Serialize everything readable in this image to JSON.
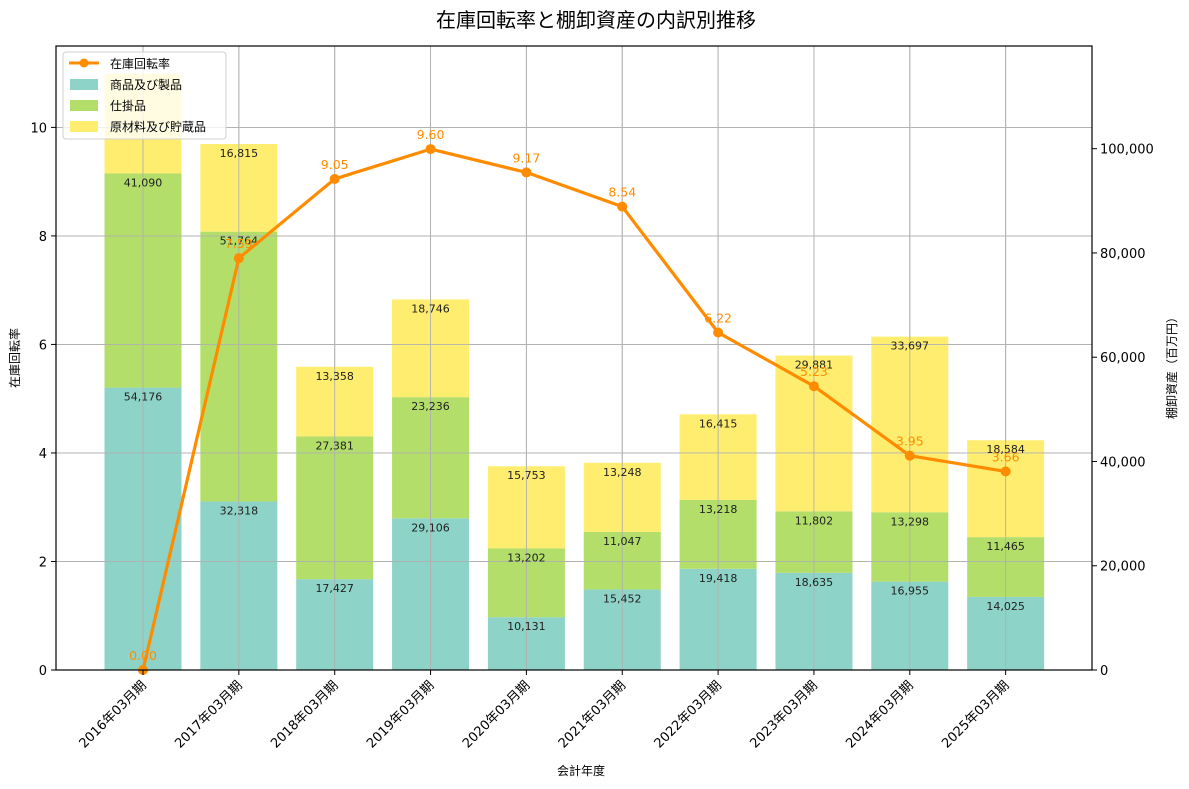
{
  "chart_data": {
    "type": "bar",
    "subtype": "stacked-bar-with-line-dual-axis",
    "title": "在庫回転率と棚卸資産の内訳別推移",
    "xlabel": "会計年度",
    "ylabel_left": "在庫回転率",
    "ylabel_right": "棚卸資産（百万円）",
    "categories": [
      "2016年03月期",
      "2017年03月期",
      "2018年03月期",
      "2019年03月期",
      "2020年03月期",
      "2021年03月期",
      "2022年03月期",
      "2023年03月期",
      "2024年03月期",
      "2025年03月期"
    ],
    "series": [
      {
        "name": "商品及び製品",
        "axis": "right",
        "kind": "bar",
        "color": "#8dd3c7",
        "values": [
          54176,
          32318,
          17427,
          29106,
          10131,
          15452,
          19418,
          18635,
          16955,
          14025
        ]
      },
      {
        "name": "仕掛品",
        "axis": "right",
        "kind": "bar",
        "color": "#b3de69",
        "values": [
          41090,
          51764,
          27381,
          23236,
          13202,
          11047,
          13218,
          11802,
          13298,
          11465
        ]
      },
      {
        "name": "原材料及び貯蔵品",
        "axis": "right",
        "kind": "bar",
        "color": "#ffed6f",
        "values": [
          19138,
          16815,
          13358,
          18746,
          15753,
          13248,
          16415,
          29881,
          33697,
          18584
        ],
        "note": "first value hidden behind legend; estimated from bar height"
      },
      {
        "name": "在庫回転率",
        "axis": "left",
        "kind": "line",
        "color": "#ff8c00",
        "values": [
          0.0,
          7.59,
          9.05,
          9.6,
          9.17,
          8.54,
          6.22,
          5.23,
          3.95,
          3.66
        ]
      }
    ],
    "value_labels": {
      "bars": [
        [
          "54,176",
          "41,090",
          ""
        ],
        [
          "32,318",
          "51,764",
          "16,815"
        ],
        [
          "17,427",
          "27,381",
          "13,358"
        ],
        [
          "29,106",
          "23,236",
          "18,746"
        ],
        [
          "10,131",
          "13,202",
          "15,753"
        ],
        [
          "15,452",
          "11,047",
          "13,248"
        ],
        [
          "19,418",
          "13,218",
          "16,415"
        ],
        [
          "18,635",
          "11,802",
          "29,881"
        ],
        [
          "16,955",
          "13,298",
          "33,697"
        ],
        [
          "14,025",
          "11,465",
          "18,584"
        ]
      ],
      "line": [
        "0.00",
        "7.59",
        "9.05",
        "9.60",
        "9.17",
        "8.54",
        "6.22",
        "5.23",
        "3.95",
        "3.66"
      ]
    },
    "ylim_left": [
      0,
      11.5
    ],
    "ylim_right": [
      0,
      119700
    ],
    "yticks_left": [
      "0",
      "2",
      "4",
      "6",
      "8",
      "10"
    ],
    "yticks_right": [
      "0",
      "20,000",
      "40,000",
      "60,000",
      "80,000",
      "100,000"
    ],
    "grid": true,
    "legend_position": "upper left",
    "legend": [
      "在庫回転率",
      "商品及び製品",
      "仕掛品",
      "原材料及び貯蔵品"
    ]
  }
}
